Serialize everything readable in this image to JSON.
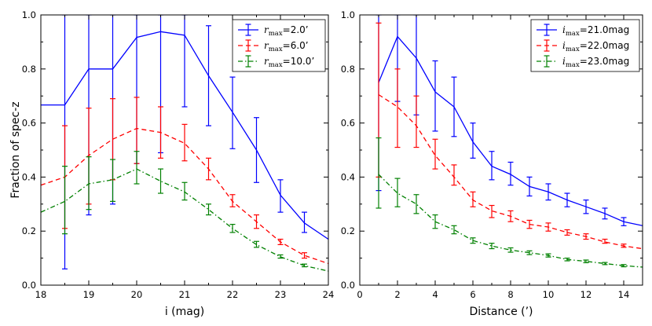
{
  "figure": {
    "ylabel": "Fraction of spec-z"
  },
  "chart_data": [
    {
      "type": "line",
      "xlabel": "i (mag)",
      "ylabel": "Fraction of spec-z",
      "xlim": [
        18,
        24
      ],
      "ylim": [
        0.0,
        1.0
      ],
      "xticks": [
        18,
        19,
        20,
        21,
        22,
        23,
        24
      ],
      "xtick_labels": [
        "18",
        "19",
        "20",
        "21",
        "22",
        "23",
        "24"
      ],
      "yticks": [
        0.0,
        0.2,
        0.4,
        0.6,
        0.8,
        1.0
      ],
      "ytick_labels": [
        "0.0",
        "0.2",
        "0.4",
        "0.6",
        "0.8",
        "1.0"
      ],
      "grid": false,
      "legend_position": "top-right",
      "series": [
        {
          "name_math": "r",
          "name_sub": "max",
          "name_rest": "=2.0’",
          "color": "#0000ff",
          "style": "solid",
          "x": [
            18.0,
            18.5,
            19.0,
            19.5,
            20.0,
            20.5,
            21.0,
            21.5,
            22.0,
            22.5,
            23.0,
            23.5,
            24.0
          ],
          "y": [
            0.667,
            0.667,
            0.8,
            0.8,
            0.917,
            0.938,
            0.925,
            0.775,
            0.64,
            0.5,
            0.333,
            0.23,
            0.17
          ],
          "err_x": [
            18.5,
            19.0,
            19.5,
            20.0,
            20.5,
            21.0,
            21.5,
            22.0,
            22.5,
            23.0,
            23.5
          ],
          "err_lo": [
            0.06,
            0.26,
            0.3,
            0.45,
            0.49,
            0.66,
            0.59,
            0.505,
            0.38,
            0.27,
            0.195
          ],
          "err_hi": [
            1.0,
            1.0,
            1.0,
            1.0,
            1.0,
            1.0,
            0.96,
            0.77,
            0.62,
            0.39,
            0.27
          ]
        },
        {
          "name_math": "r",
          "name_sub": "max",
          "name_rest": "=6.0’",
          "color": "#ff0000",
          "style": "dashed",
          "x": [
            18.0,
            18.5,
            19.0,
            19.5,
            20.0,
            20.5,
            21.0,
            21.5,
            22.0,
            22.5,
            23.0,
            23.5,
            24.0
          ],
          "y": [
            0.37,
            0.4,
            0.48,
            0.54,
            0.58,
            0.565,
            0.525,
            0.43,
            0.31,
            0.235,
            0.16,
            0.11,
            0.08
          ],
          "err_x": [
            18.5,
            19.0,
            19.5,
            20.0,
            20.5,
            21.0,
            21.5,
            22.0,
            22.5,
            23.0,
            23.5
          ],
          "err_lo": [
            0.21,
            0.3,
            0.39,
            0.45,
            0.47,
            0.46,
            0.39,
            0.29,
            0.21,
            0.15,
            0.1
          ],
          "err_hi": [
            0.59,
            0.655,
            0.69,
            0.695,
            0.66,
            0.595,
            0.47,
            0.335,
            0.26,
            0.17,
            0.12
          ]
        },
        {
          "name_math": "r",
          "name_sub": "max",
          "name_rest": "=10.0’",
          "color": "#008000",
          "style": "dashdot",
          "x": [
            18.0,
            18.5,
            19.0,
            19.5,
            20.0,
            20.5,
            21.0,
            21.5,
            22.0,
            22.5,
            23.0,
            23.5,
            24.0
          ],
          "y": [
            0.27,
            0.31,
            0.375,
            0.39,
            0.43,
            0.385,
            0.345,
            0.28,
            0.21,
            0.15,
            0.105,
            0.072,
            0.052
          ],
          "err_x": [
            18.5,
            19.0,
            19.5,
            20.0,
            20.5,
            21.0,
            21.5,
            22.0,
            22.5,
            23.0,
            23.5
          ],
          "err_lo": [
            0.19,
            0.28,
            0.31,
            0.375,
            0.34,
            0.315,
            0.26,
            0.195,
            0.14,
            0.1,
            0.068
          ],
          "err_hi": [
            0.44,
            0.475,
            0.465,
            0.495,
            0.43,
            0.38,
            0.3,
            0.225,
            0.162,
            0.112,
            0.078
          ]
        }
      ]
    },
    {
      "type": "line",
      "xlabel": "Distance (’)",
      "ylabel": "",
      "xlim": [
        0,
        15
      ],
      "ylim": [
        0.0,
        1.0
      ],
      "xticks": [
        0,
        2,
        4,
        6,
        8,
        10,
        12,
        14
      ],
      "xtick_labels": [
        "0",
        "2",
        "4",
        "6",
        "8",
        "10",
        "12",
        "14"
      ],
      "yticks": [
        0.0,
        0.2,
        0.4,
        0.6,
        0.8,
        1.0
      ],
      "ytick_labels": [
        "0.0",
        "0.2",
        "0.4",
        "0.6",
        "0.8",
        "1.0"
      ],
      "grid": false,
      "legend_position": "top-right",
      "series": [
        {
          "name_math": "i",
          "name_sub": "max",
          "name_rest": "=21.0mag",
          "color": "#0000ff",
          "style": "solid",
          "x": [
            1,
            2,
            3,
            4,
            5,
            6,
            7,
            8,
            9,
            10,
            11,
            12,
            13,
            14,
            15
          ],
          "y": [
            0.75,
            0.92,
            0.84,
            0.715,
            0.66,
            0.53,
            0.44,
            0.41,
            0.365,
            0.345,
            0.315,
            0.29,
            0.265,
            0.235,
            0.22
          ],
          "err_x": [
            1,
            2,
            3,
            4,
            5,
            6,
            7,
            8,
            9,
            10,
            11,
            12,
            13,
            14
          ],
          "err_lo": [
            0.35,
            0.68,
            0.63,
            0.57,
            0.55,
            0.47,
            0.39,
            0.37,
            0.33,
            0.315,
            0.29,
            0.265,
            0.245,
            0.22
          ],
          "err_hi": [
            1.0,
            1.0,
            1.0,
            0.83,
            0.77,
            0.6,
            0.495,
            0.455,
            0.4,
            0.375,
            0.34,
            0.315,
            0.285,
            0.25
          ]
        },
        {
          "name_math": "i",
          "name_sub": "max",
          "name_rest": "=22.0mag",
          "color": "#ff0000",
          "style": "dashed",
          "x": [
            1,
            2,
            3,
            4,
            5,
            6,
            7,
            8,
            9,
            10,
            11,
            12,
            13,
            14,
            15
          ],
          "y": [
            0.705,
            0.66,
            0.59,
            0.48,
            0.4,
            0.315,
            0.275,
            0.255,
            0.225,
            0.215,
            0.195,
            0.18,
            0.16,
            0.145,
            0.135
          ],
          "err_x": [
            1,
            2,
            3,
            4,
            5,
            6,
            7,
            8,
            9,
            10,
            11,
            12,
            13,
            14
          ],
          "err_lo": [
            0.4,
            0.51,
            0.51,
            0.43,
            0.37,
            0.29,
            0.25,
            0.235,
            0.21,
            0.2,
            0.185,
            0.17,
            0.155,
            0.14
          ],
          "err_hi": [
            0.97,
            0.8,
            0.7,
            0.54,
            0.445,
            0.345,
            0.295,
            0.275,
            0.24,
            0.23,
            0.205,
            0.19,
            0.17,
            0.152
          ]
        },
        {
          "name_math": "i",
          "name_sub": "max",
          "name_rest": "=23.0mag",
          "color": "#008000",
          "style": "dashdot",
          "x": [
            1,
            2,
            3,
            4,
            5,
            6,
            7,
            8,
            9,
            10,
            11,
            12,
            13,
            14,
            15
          ],
          "y": [
            0.41,
            0.34,
            0.3,
            0.235,
            0.205,
            0.165,
            0.145,
            0.13,
            0.12,
            0.11,
            0.095,
            0.088,
            0.08,
            0.072,
            0.067
          ],
          "err_x": [
            1,
            2,
            3,
            4,
            5,
            6,
            7,
            8,
            9,
            10,
            11,
            12,
            13,
            14
          ],
          "err_lo": [
            0.285,
            0.29,
            0.265,
            0.21,
            0.19,
            0.155,
            0.135,
            0.122,
            0.113,
            0.104,
            0.09,
            0.083,
            0.076,
            0.068
          ],
          "err_hi": [
            0.545,
            0.395,
            0.335,
            0.26,
            0.22,
            0.175,
            0.155,
            0.138,
            0.127,
            0.116,
            0.1,
            0.093,
            0.084,
            0.076
          ]
        }
      ]
    }
  ]
}
